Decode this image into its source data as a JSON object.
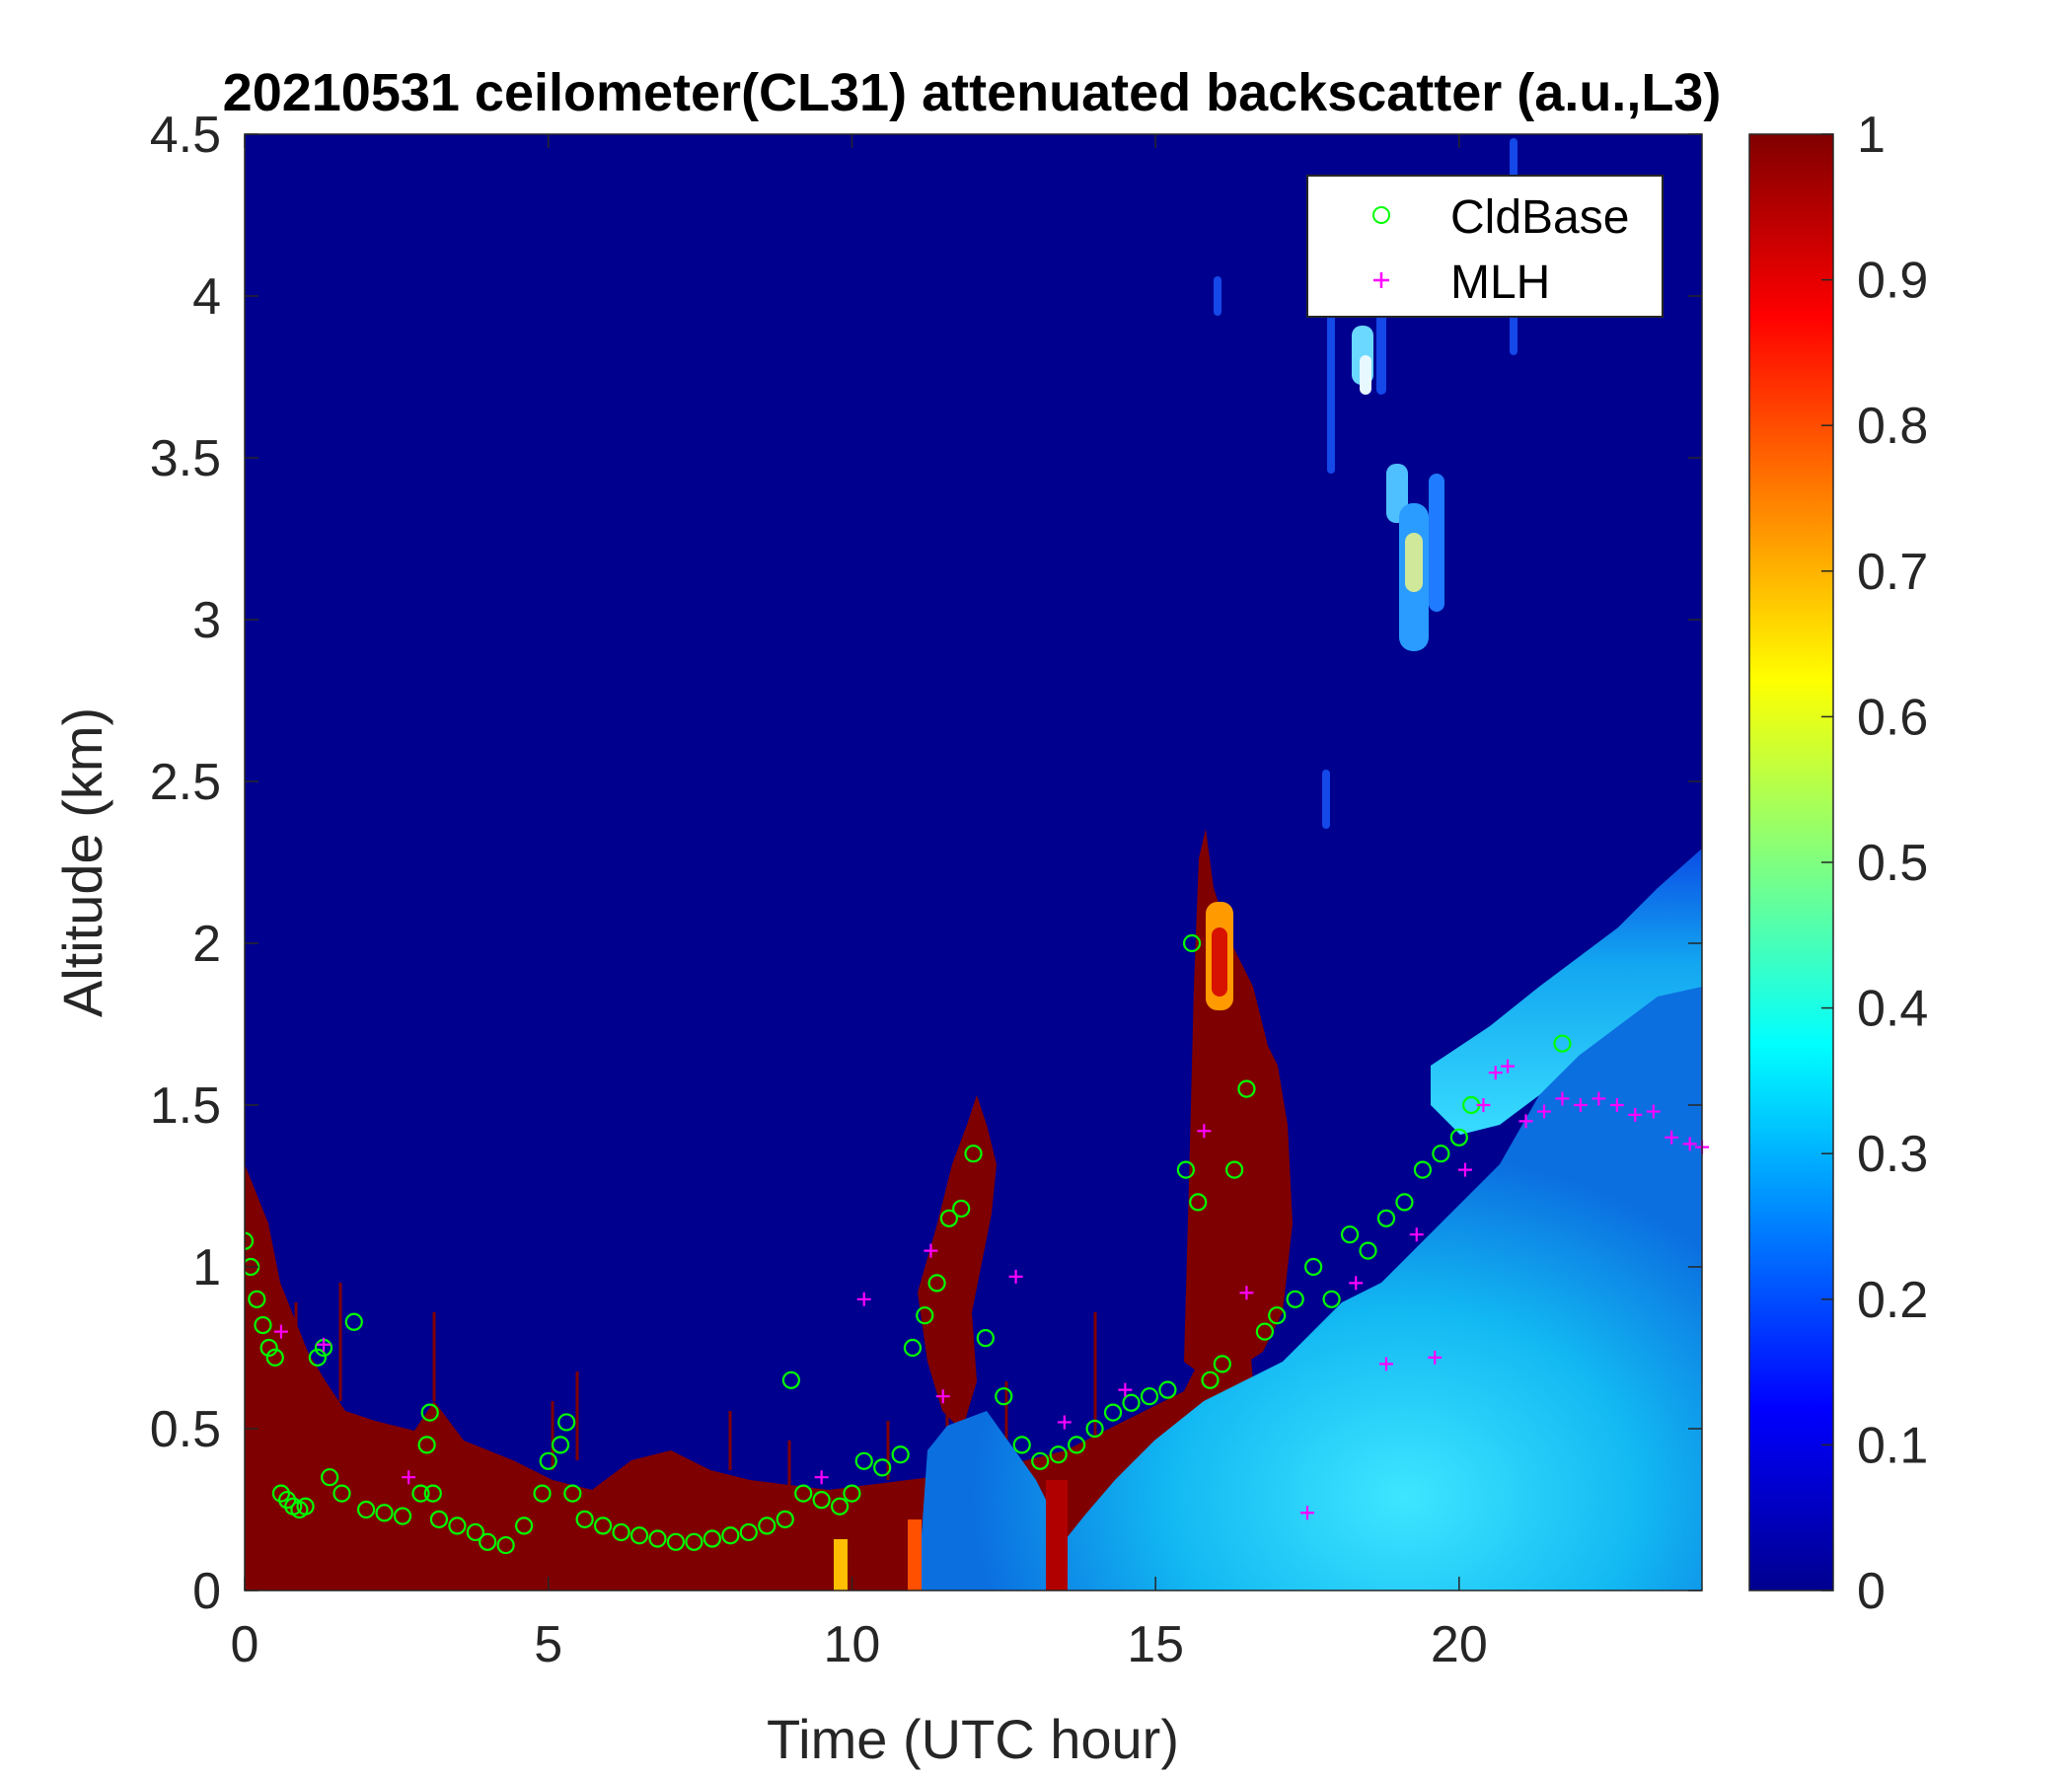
{
  "chart_data": {
    "type": "heatmap",
    "title": "20210531 ceilometer(CL31) attenuated backscatter (a.u.,L3)",
    "xlabel": "Time (UTC hour)",
    "ylabel": "Altitude (km)",
    "xlim": [
      0,
      24
    ],
    "ylim": [
      0,
      4.5
    ],
    "xticks": [
      0,
      5,
      10,
      15,
      20
    ],
    "yticks": [
      0,
      0.5,
      1,
      1.5,
      2,
      2.5,
      3,
      3.5,
      4,
      4.5
    ],
    "colorbar": {
      "colormap": "jet",
      "range": [
        0,
        1
      ],
      "ticks": [
        0,
        0.1,
        0.2,
        0.3,
        0.4,
        0.5,
        0.6,
        0.7,
        0.8,
        0.9,
        1
      ]
    },
    "legend": {
      "position": "top-right",
      "entries": [
        "CldBase",
        "MLH"
      ]
    },
    "grid": false,
    "series": [
      {
        "name": "CldBase",
        "marker": "circle",
        "color": "#00ff00",
        "x": [
          0,
          0.1,
          0.2,
          0.3,
          0.4,
          0.5,
          0.6,
          0.7,
          0.8,
          0.9,
          1.0,
          1.2,
          1.3,
          1.4,
          1.6,
          1.8,
          2.0,
          2.3,
          2.6,
          2.9,
          3.0,
          3.05,
          3.1,
          3.2,
          3.5,
          3.8,
          4.0,
          4.3,
          4.6,
          4.9,
          5.0,
          5.2,
          5.3,
          5.4,
          5.6,
          5.9,
          6.2,
          6.5,
          6.8,
          7.1,
          7.4,
          7.7,
          8.0,
          8.3,
          8.6,
          8.9,
          9.0,
          9.2,
          9.5,
          9.8,
          10.0,
          10.2,
          10.5,
          10.8,
          11.0,
          11.2,
          11.4,
          11.6,
          11.8,
          12.0,
          12.2,
          12.5,
          12.8,
          13.1,
          13.4,
          13.7,
          14.0,
          14.3,
          14.6,
          14.9,
          15.2,
          15.5,
          15.6,
          15.7,
          15.9,
          16.1,
          16.3,
          16.5,
          16.8,
          17.0,
          17.3,
          17.6,
          17.9,
          18.2,
          18.5,
          18.8,
          19.1,
          19.4,
          19.7,
          20.0,
          20.2,
          21.7
        ],
        "y": [
          1.08,
          1.0,
          0.9,
          0.82,
          0.75,
          0.72,
          0.3,
          0.28,
          0.26,
          0.25,
          0.26,
          0.72,
          0.75,
          0.35,
          0.3,
          0.83,
          0.25,
          0.24,
          0.23,
          0.3,
          0.45,
          0.55,
          0.3,
          0.22,
          0.2,
          0.18,
          0.15,
          0.14,
          0.2,
          0.3,
          0.4,
          0.45,
          0.52,
          0.3,
          0.22,
          0.2,
          0.18,
          0.17,
          0.16,
          0.15,
          0.15,
          0.16,
          0.17,
          0.18,
          0.2,
          0.22,
          0.65,
          0.3,
          0.28,
          0.26,
          0.3,
          0.4,
          0.38,
          0.42,
          0.75,
          0.85,
          0.95,
          1.15,
          1.18,
          1.35,
          0.78,
          0.6,
          0.45,
          0.4,
          0.42,
          0.45,
          0.5,
          0.55,
          0.58,
          0.6,
          0.62,
          1.3,
          2.0,
          1.2,
          0.65,
          0.7,
          1.3,
          1.55,
          0.8,
          0.85,
          0.9,
          1.0,
          0.9,
          1.1,
          1.05,
          1.15,
          1.2,
          1.3,
          1.35,
          1.4,
          1.5,
          1.69
        ]
      },
      {
        "name": "MLH",
        "marker": "plus",
        "color": "#ff00ff",
        "x": [
          0.6,
          1.3,
          2.7,
          9.5,
          10.2,
          11.3,
          11.5,
          12.7,
          13.5,
          14.5,
          15.8,
          16.5,
          17.5,
          18.3,
          18.8,
          19.3,
          19.6,
          20.1,
          20.4,
          20.6,
          20.8,
          21.1,
          21.4,
          21.7,
          22.0,
          22.3,
          22.6,
          22.9,
          23.2,
          23.5,
          23.8,
          24.0
        ],
        "y": [
          0.8,
          0.76,
          0.35,
          0.35,
          0.9,
          1.05,
          0.6,
          0.97,
          0.52,
          0.62,
          1.42,
          0.92,
          0.24,
          0.95,
          0.7,
          1.1,
          0.72,
          1.3,
          1.5,
          1.6,
          1.62,
          1.45,
          1.48,
          1.52,
          1.5,
          1.52,
          1.5,
          1.47,
          1.48,
          1.4,
          1.38,
          1.37
        ]
      }
    ]
  }
}
